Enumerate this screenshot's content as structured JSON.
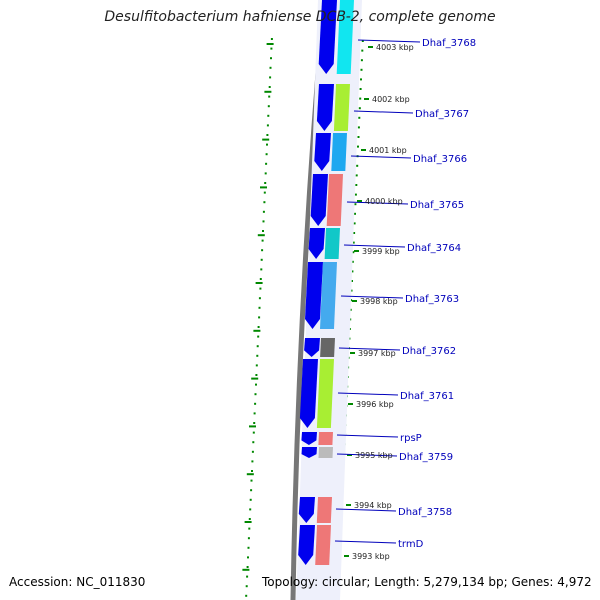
{
  "title": "Desulfitobacterium hafniense DCB-2, complete genome",
  "footer": {
    "accession": "Accession: NC_011830",
    "topology": "Topology: circular; Length: 5,279,134 bp; Genes: 4,972"
  },
  "colors": {
    "forward_strand": "#0000ee",
    "tick_marks": "#008800",
    "label_text": "#0000bb",
    "backbone": "#777777"
  },
  "kbp_labels": [
    "4003 kbp",
    "4002 kbp",
    "4001 kbp",
    "4000 kbp",
    "3999 kbp",
    "3998 kbp",
    "3997 kbp",
    "3996 kbp",
    "3995 kbp",
    "3994 kbp",
    "3993 kbp"
  ],
  "genes": [
    {
      "label": "Dhaf_3768",
      "color": "#11e6f0"
    },
    {
      "label": "Dhaf_3767",
      "color": "#a8ee33"
    },
    {
      "label": "Dhaf_3766",
      "color": "#1ea8f0"
    },
    {
      "label": "Dhaf_3765",
      "color": "#ee7777"
    },
    {
      "label": "Dhaf_3764",
      "color": "#11c8c8"
    },
    {
      "label": "Dhaf_3763",
      "color": "#44aaee"
    },
    {
      "label": "Dhaf_3762",
      "color": "#666666"
    },
    {
      "label": "Dhaf_3761",
      "color": "#a8ee33"
    },
    {
      "label": "rpsP",
      "color": "#ee7777"
    },
    {
      "label": "Dhaf_3759",
      "color": "#bbbbbb"
    },
    {
      "label": "Dhaf_3758",
      "color": "#ee7777"
    },
    {
      "label": "trmD",
      "color": "#ee7777"
    }
  ]
}
